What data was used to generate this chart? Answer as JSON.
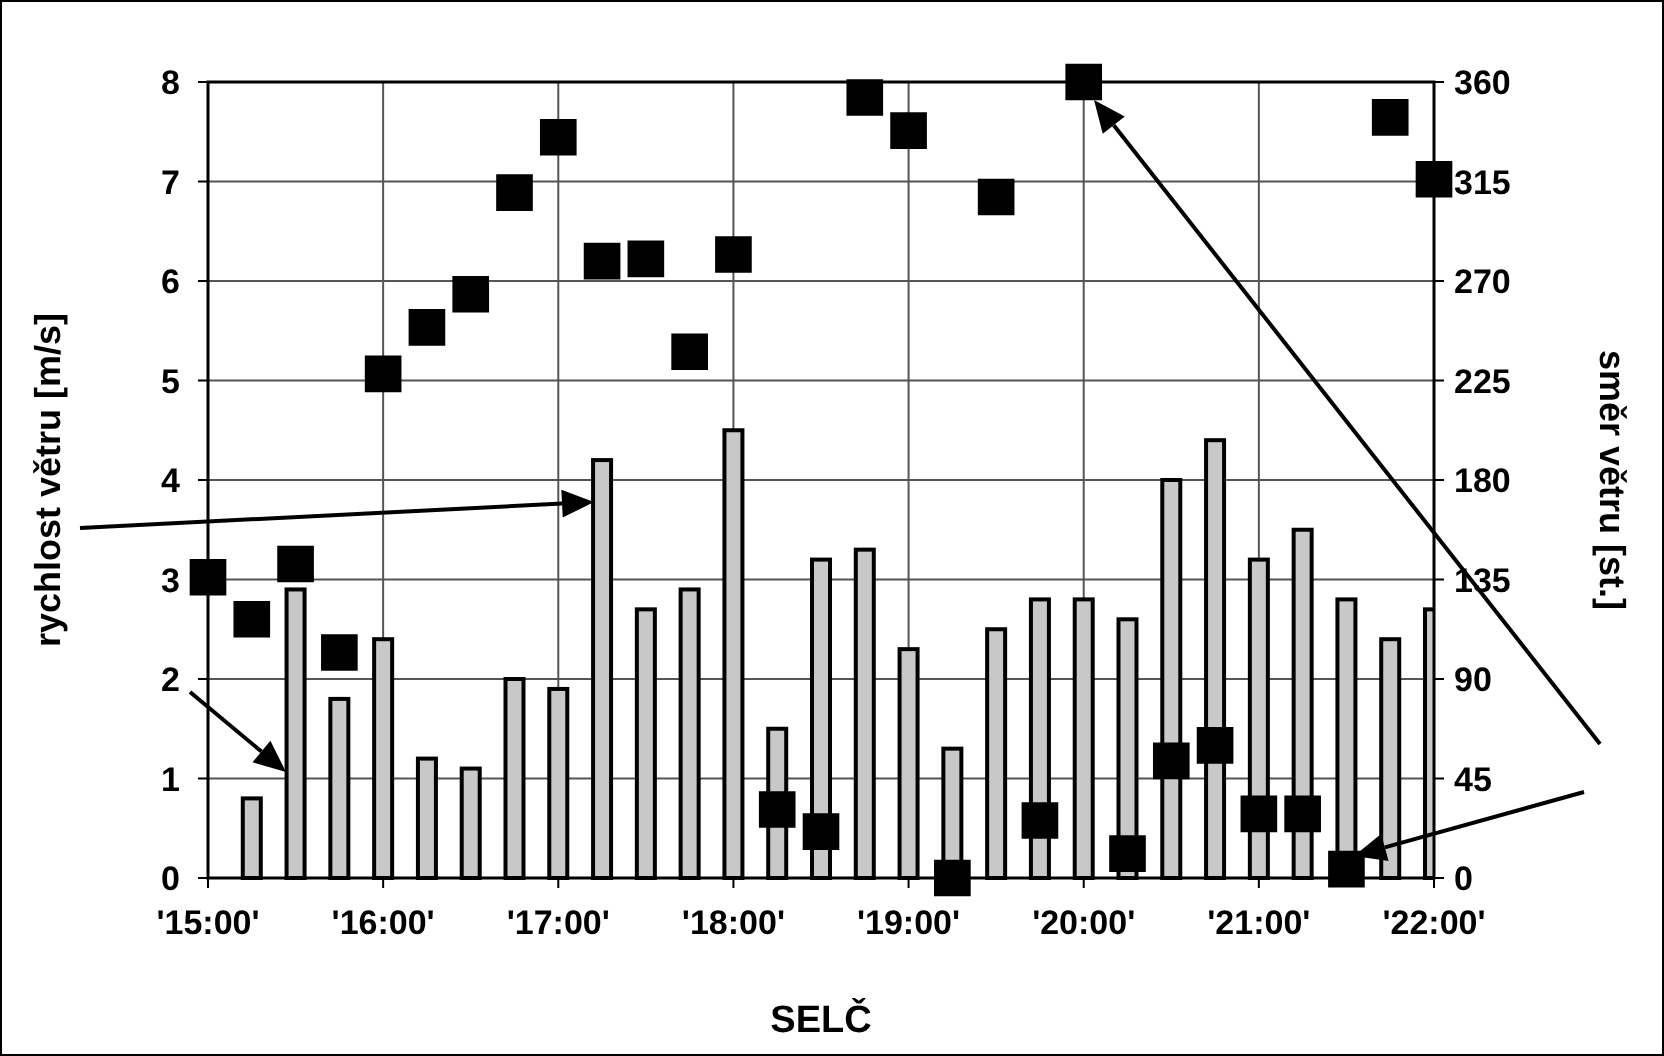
{
  "chart_data": {
    "type": "bar",
    "xlabel": "SELČ",
    "ylabel": "rychlost větru [m/s]",
    "y2label": "směr větru [st.]",
    "categories": [
      "'15:00'",
      null,
      null,
      null,
      "'16:00'",
      null,
      null,
      null,
      "'17:00'",
      null,
      null,
      null,
      "'18:00'",
      null,
      null,
      null,
      "'19:00'",
      null,
      null,
      null,
      "'20:00'",
      null,
      null,
      null,
      "'21:00'",
      null,
      null,
      null,
      "'22:00'"
    ],
    "ylim": [
      0,
      8
    ],
    "yticks": [
      0,
      1,
      2,
      3,
      4,
      5,
      6,
      7,
      8
    ],
    "y2lim": [
      0,
      360
    ],
    "y2ticks": [
      0,
      45,
      90,
      135,
      180,
      225,
      270,
      315,
      360
    ],
    "grid": true,
    "series": [
      {
        "color": "#c8c8c8",
        "values": [
          null,
          0.8,
          2.9,
          1.8,
          2.4,
          1.2,
          1.1,
          2.0,
          1.9,
          4.2,
          2.7,
          2.9,
          4.5,
          1.5,
          3.2,
          3.3,
          2.3,
          1.3,
          2.5,
          2.8,
          2.8,
          2.6,
          4.0,
          4.4,
          3.2,
          3.5,
          2.8,
          2.4,
          2.7
        ]
      },
      {
        "type": "scatter",
        "axis": "y2",
        "marker": "square",
        "color": "#000000",
        "values": [
          136,
          117,
          142,
          102,
          228,
          249,
          264,
          310,
          335,
          279,
          280,
          238,
          282,
          31,
          21,
          353,
          338,
          0,
          308,
          26,
          360,
          11,
          53,
          60,
          29,
          29,
          4,
          344,
          316
        ]
      }
    ]
  }
}
